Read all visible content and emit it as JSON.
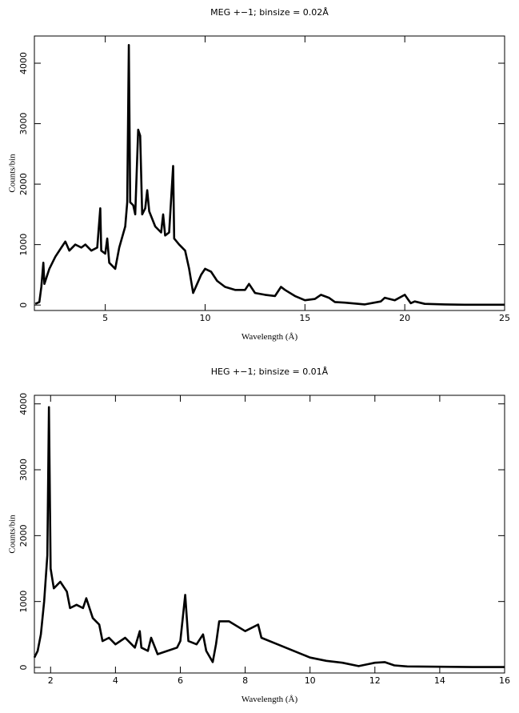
{
  "chart_data": [
    {
      "type": "line",
      "title": "MEG +−1; binsize = 0.02Å",
      "x_label": "Wavelength (Å)",
      "y_label": "Counts/bin",
      "color": "#000000",
      "xlim": [
        1.45,
        25
      ],
      "ylim": [
        -90,
        4450
      ],
      "xticks": [
        5,
        10,
        15,
        20,
        25
      ],
      "yticks": [
        0,
        1000,
        2000,
        3000,
        4000
      ],
      "x": [
        1.5,
        1.7,
        1.8,
        1.9,
        1.95,
        2.2,
        2.5,
        2.8,
        3.0,
        3.2,
        3.5,
        3.8,
        4.0,
        4.3,
        4.6,
        4.75,
        4.8,
        5.0,
        5.1,
        5.2,
        5.5,
        5.7,
        6.0,
        6.1,
        6.18,
        6.25,
        6.4,
        6.5,
        6.65,
        6.75,
        6.85,
        7.0,
        7.1,
        7.2,
        7.5,
        7.8,
        7.9,
        8.0,
        8.2,
        8.4,
        8.45,
        8.7,
        9.0,
        9.2,
        9.4,
        9.6,
        9.8,
        10.0,
        10.3,
        10.6,
        11.0,
        11.5,
        12.0,
        12.2,
        12.5,
        13.0,
        13.5,
        13.8,
        14.0,
        14.5,
        15.0,
        15.5,
        15.8,
        16.2,
        16.5,
        17.0,
        18.0,
        18.8,
        19.0,
        19.5,
        20.0,
        20.3,
        20.5,
        21,
        22,
        23,
        25
      ],
      "values": [
        20,
        50,
        300,
        700,
        350,
        600,
        800,
        950,
        1050,
        900,
        1000,
        950,
        1000,
        900,
        950,
        1600,
        900,
        850,
        1100,
        700,
        600,
        950,
        1300,
        1700,
        4300,
        1700,
        1650,
        1500,
        2900,
        2800,
        1500,
        1600,
        1900,
        1550,
        1300,
        1200,
        1500,
        1150,
        1200,
        2300,
        1100,
        1000,
        900,
        600,
        200,
        350,
        500,
        600,
        550,
        400,
        300,
        250,
        250,
        350,
        200,
        170,
        150,
        300,
        250,
        150,
        80,
        100,
        170,
        120,
        50,
        40,
        10,
        60,
        120,
        80,
        170,
        30,
        60,
        20,
        10,
        5,
        5
      ]
    },
    {
      "type": "line",
      "title": "HEG +−1; binsize = 0.01Å",
      "x_label": "Wavelength (Å)",
      "y_label": "Counts/bin",
      "color": "#000000",
      "xlim": [
        1.5,
        16
      ],
      "ylim": [
        -85,
        4130
      ],
      "xticks": [
        2,
        4,
        6,
        8,
        10,
        12,
        14,
        16
      ],
      "yticks": [
        0,
        1000,
        2000,
        3000,
        4000
      ],
      "x": [
        1.5,
        1.6,
        1.7,
        1.8,
        1.85,
        1.9,
        1.95,
        2.0,
        2.1,
        2.3,
        2.5,
        2.6,
        2.8,
        3.0,
        3.1,
        3.3,
        3.5,
        3.6,
        3.8,
        4.0,
        4.3,
        4.6,
        4.75,
        4.8,
        5.0,
        5.1,
        5.3,
        5.6,
        5.9,
        6.0,
        6.15,
        6.25,
        6.5,
        6.7,
        6.8,
        7.0,
        7.1,
        7.2,
        7.5,
        8.0,
        8.4,
        8.5,
        9.0,
        9.5,
        10.0,
        10.5,
        11.0,
        11.5,
        11.8,
        12.0,
        12.3,
        12.6,
        13,
        14,
        15,
        16
      ],
      "values": [
        150,
        250,
        500,
        1000,
        1350,
        1700,
        3950,
        1500,
        1200,
        1300,
        1150,
        900,
        950,
        900,
        1050,
        750,
        650,
        400,
        450,
        350,
        450,
        300,
        550,
        300,
        250,
        450,
        200,
        250,
        300,
        400,
        1100,
        400,
        350,
        500,
        250,
        80,
        350,
        700,
        700,
        550,
        650,
        450,
        350,
        250,
        150,
        100,
        70,
        20,
        50,
        70,
        80,
        30,
        15,
        10,
        5,
        5
      ]
    }
  ]
}
